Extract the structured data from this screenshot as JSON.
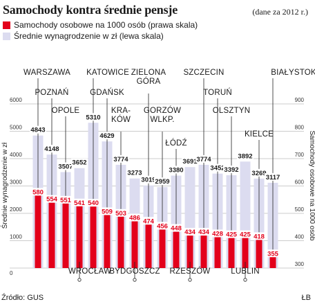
{
  "header": {
    "title": "Samochody kontra średnie pensje",
    "note": "(dane za 2012 r.)"
  },
  "legend": {
    "cars_label": "Samochody osobowe na 1000 osób (prawa skala)",
    "salary_label": "Średnie wynagrodzenie w zł (lewa skala)"
  },
  "footer": {
    "source": "Źródło: GUS",
    "corner": "ŁB"
  },
  "colors": {
    "cars": "#e3001b",
    "salary": "#dcdcf0",
    "text": "#1a1a1a"
  },
  "chart_data": {
    "type": "bar",
    "title": "Samochody kontra średnie pensje",
    "categories": [
      "WARSZAWA",
      "POZNAŃ",
      "OPOLE",
      "WROCŁAW",
      "KATOWICE",
      "GDAŃSK",
      "KRAKÓW",
      "BYDGOSZCZ",
      "ZIELONA GÓRA",
      "GORZÓW WLKP.",
      "ŁÓDŹ",
      "RZESZÓW",
      "SZCZECIN",
      "TORUŃ",
      "OLSZTYN",
      "LUBLIN",
      "KIELCE",
      "BIAŁYSTOK"
    ],
    "category_labels": [
      "WARSZAWA",
      "POZNAŃ",
      "OPOLE",
      "WROCŁAW",
      "KATOWICE",
      "GDAŃSK",
      "KRA-\nKÓW",
      "BYDGOSZCZ",
      "ZIELONA\nGÓRA",
      "GORZÓW\nWLKP.",
      "ŁÓDŹ",
      "RZESZÓW",
      "SZCZECIN",
      "TORUŃ",
      "OLSZTYN",
      "LUBLIN",
      "KIELCE",
      "BIAŁYSTOK"
    ],
    "series": [
      {
        "name": "Średnie wynagrodzenie w zł (lewa skala)",
        "axis": "left",
        "values": [
          4843,
          4148,
          3507,
          3652,
          5310,
          4629,
          3774,
          3273,
          3019,
          2959,
          3380,
          3691,
          3774,
          3452,
          3392,
          3892,
          3269,
          3117
        ]
      },
      {
        "name": "Samochody osobowe na 1000 osób (prawa skala)",
        "axis": "right",
        "values": [
          580,
          554,
          551,
          541,
          540,
          509,
          503,
          486,
          474,
          456,
          448,
          434,
          434,
          428,
          425,
          425,
          418,
          355
        ]
      }
    ],
    "ylabel": "Średnie wynagrodzenie w zł",
    "ylabel_right": "Samochody osobowe na 1000 osób",
    "ylim": [
      0,
      6000
    ],
    "ylim_right": [
      300,
      900
    ],
    "yticks": [
      0,
      1000,
      2000,
      3000,
      4000,
      5000,
      6000
    ],
    "yticks_right": [
      300,
      400,
      500,
      600,
      700,
      800,
      900
    ],
    "grid": true
  }
}
